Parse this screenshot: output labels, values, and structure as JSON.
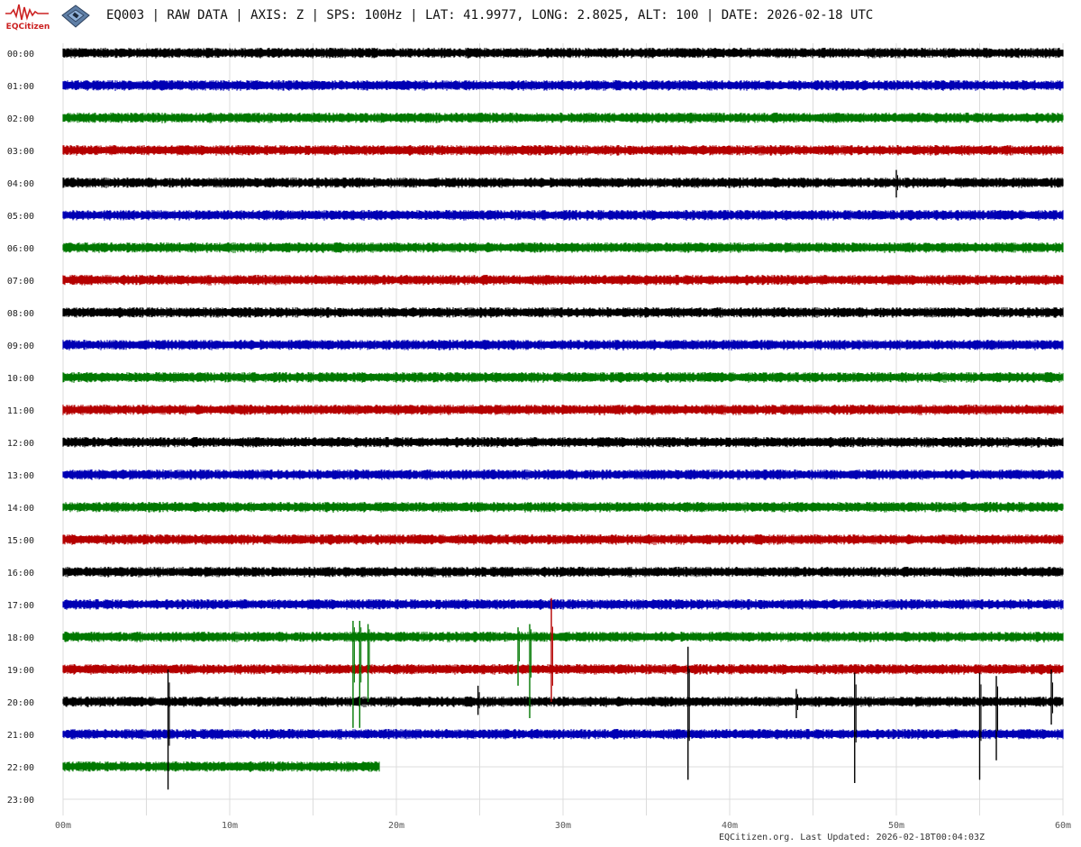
{
  "header": {
    "logo_text": "EQCitizen",
    "title": "EQ003 | RAW DATA | AXIS: Z | SPS: 100Hz | LAT: 41.9977, LONG: 2.8025, ALT: 100 | DATE: 2026-02-18 UTC"
  },
  "footer": {
    "text": "EQCitizen.org. Last Updated: 2026-02-18T00:04:03Z"
  },
  "colors": {
    "black": "#000000",
    "blue": "#0000b4",
    "green": "#007800",
    "red": "#b40000",
    "grid": "#dcdcdc",
    "logo": "#cc2222"
  },
  "chart_data": {
    "type": "line",
    "title": "",
    "xlabel": "",
    "ylabel": "",
    "x_range_minutes": [
      0,
      60
    ],
    "x_ticks": [
      "00m",
      "10m",
      "20m",
      "30m",
      "40m",
      "50m",
      "60m"
    ],
    "grid": true,
    "color_cycle": [
      "#000000",
      "#0000b4",
      "#007800",
      "#b40000"
    ],
    "rows": [
      {
        "label": "00:00",
        "start_min": 0,
        "end_min": 60,
        "noise": 0.3
      },
      {
        "label": "01:00",
        "start_min": 0,
        "end_min": 60,
        "noise": 0.3
      },
      {
        "label": "02:00",
        "start_min": 0,
        "end_min": 60,
        "noise": 0.3
      },
      {
        "label": "03:00",
        "start_min": 0,
        "end_min": 60,
        "noise": 0.3
      },
      {
        "label": "04:00",
        "start_min": 0,
        "end_min": 60,
        "noise": 0.3
      },
      {
        "label": "05:00",
        "start_min": 0,
        "end_min": 60,
        "noise": 0.3
      },
      {
        "label": "06:00",
        "start_min": 0,
        "end_min": 60,
        "noise": 0.3
      },
      {
        "label": "07:00",
        "start_min": 0,
        "end_min": 60,
        "noise": 0.3
      },
      {
        "label": "08:00",
        "start_min": 0,
        "end_min": 60,
        "noise": 0.3
      },
      {
        "label": "09:00",
        "start_min": 0,
        "end_min": 60,
        "noise": 0.3
      },
      {
        "label": "10:00",
        "start_min": 0,
        "end_min": 60,
        "noise": 0.3
      },
      {
        "label": "11:00",
        "start_min": 0,
        "end_min": 60,
        "noise": 0.3
      },
      {
        "label": "12:00",
        "start_min": 0,
        "end_min": 60,
        "noise": 0.3
      },
      {
        "label": "13:00",
        "start_min": 0,
        "end_min": 60,
        "noise": 0.3
      },
      {
        "label": "14:00",
        "start_min": 0,
        "end_min": 60,
        "noise": 0.3
      },
      {
        "label": "15:00",
        "start_min": 0,
        "end_min": 60,
        "noise": 0.3
      },
      {
        "label": "16:00",
        "start_min": 0,
        "end_min": 60,
        "noise": 0.3
      },
      {
        "label": "17:00",
        "start_min": 0,
        "end_min": 60,
        "noise": 0.3
      },
      {
        "label": "18:00",
        "start_min": 0,
        "end_min": 60,
        "noise": 0.3
      },
      {
        "label": "19:00",
        "start_min": 0,
        "end_min": 60,
        "noise": 0.3
      },
      {
        "label": "20:00",
        "start_min": 0,
        "end_min": 60,
        "noise": 0.3
      },
      {
        "label": "21:00",
        "start_min": 0,
        "end_min": 60,
        "noise": 0.3
      },
      {
        "label": "22:00",
        "start_min": 0,
        "end_min": 19,
        "noise": 0.3
      },
      {
        "label": "23:00",
        "start_min": 0,
        "end_min": 0,
        "noise": 0.3
      }
    ],
    "spikes": [
      {
        "row": 4,
        "minute": 50.0,
        "up": 0.4,
        "down": 0.45
      },
      {
        "row": 18,
        "minute": 17.4,
        "up": 0.5,
        "down": 2.8
      },
      {
        "row": 18,
        "minute": 17.8,
        "up": 0.5,
        "down": 2.8
      },
      {
        "row": 18,
        "minute": 18.3,
        "up": 0.4,
        "down": 2.0
      },
      {
        "row": 18,
        "minute": 28.0,
        "up": 0.4,
        "down": 2.5
      },
      {
        "row": 18,
        "minute": 27.3,
        "up": 0.3,
        "down": 1.5
      },
      {
        "row": 19,
        "minute": 29.3,
        "up": 2.2,
        "down": 1.0
      },
      {
        "row": 20,
        "minute": 6.3,
        "up": 1.0,
        "down": 2.7
      },
      {
        "row": 20,
        "minute": 37.5,
        "up": 1.7,
        "down": 2.4
      },
      {
        "row": 20,
        "minute": 47.5,
        "up": 0.9,
        "down": 2.5
      },
      {
        "row": 20,
        "minute": 55.0,
        "up": 0.9,
        "down": 2.4
      },
      {
        "row": 20,
        "minute": 56.0,
        "up": 0.8,
        "down": 1.8
      },
      {
        "row": 20,
        "minute": 59.3,
        "up": 1.0,
        "down": 0.7
      },
      {
        "row": 20,
        "minute": 44.0,
        "up": 0.4,
        "down": 0.5
      },
      {
        "row": 20,
        "minute": 24.9,
        "up": 0.5,
        "down": 0.4
      }
    ]
  }
}
